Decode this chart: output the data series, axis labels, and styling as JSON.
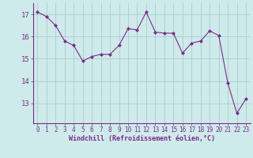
{
  "x": [
    0,
    1,
    2,
    3,
    4,
    5,
    6,
    7,
    8,
    9,
    10,
    11,
    12,
    13,
    14,
    15,
    16,
    17,
    18,
    19,
    20,
    21,
    22,
    23
  ],
  "y": [
    17.1,
    16.9,
    16.5,
    15.8,
    15.6,
    14.9,
    15.1,
    15.2,
    15.2,
    15.6,
    16.35,
    16.3,
    17.1,
    16.2,
    16.15,
    16.15,
    15.25,
    15.7,
    15.8,
    16.25,
    16.05,
    13.9,
    12.55,
    13.2
  ],
  "line_color": "#7b2d8b",
  "marker": "D",
  "marker_size": 2.0,
  "bg_color": "#ceeaea",
  "grid_color": "#aacece",
  "xlabel": "Windchill (Refroidissement éolien,°C)",
  "xlabel_color": "#7b2d8b",
  "tick_color": "#7b2d8b",
  "yticks": [
    13,
    14,
    15,
    16,
    17
  ],
  "xticks": [
    0,
    1,
    2,
    3,
    4,
    5,
    6,
    7,
    8,
    9,
    10,
    11,
    12,
    13,
    14,
    15,
    16,
    17,
    18,
    19,
    20,
    21,
    22,
    23
  ],
  "ylim": [
    12.1,
    17.5
  ],
  "xlim": [
    -0.5,
    23.5
  ],
  "tick_fontsize": 5.5,
  "xlabel_fontsize": 6.0,
  "ytick_fontsize": 6.5
}
